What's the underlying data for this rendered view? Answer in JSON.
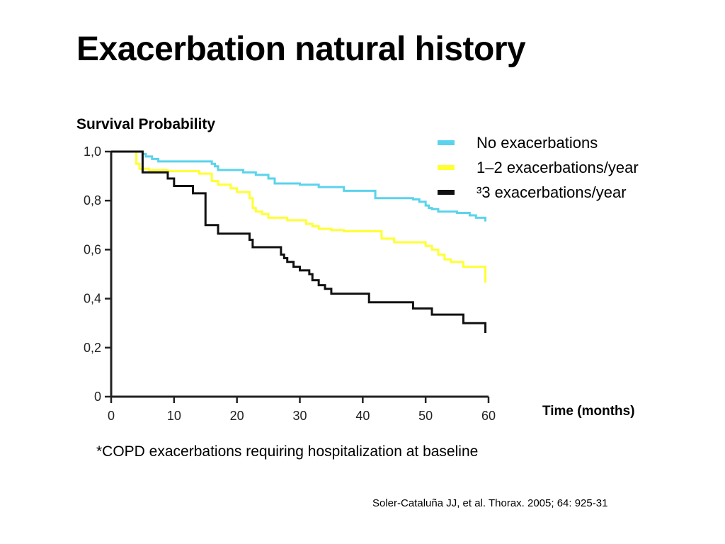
{
  "slide": {
    "title": "Exacerbation natural history",
    "footnote": "*COPD exacerbations requiring hospitalization at baseline",
    "citation": "Soler-Cataluña JJ, et al. Thorax. 2005; 64: 925-31"
  },
  "chart_data": {
    "type": "line",
    "step": true,
    "ylabel": "Survival Probability",
    "xlabel": "Time (months)",
    "xlim": [
      0,
      60
    ],
    "ylim": [
      0,
      1
    ],
    "xticks": [
      0,
      10,
      20,
      30,
      40,
      50,
      60
    ],
    "xtick_labels": [
      "0",
      "10",
      "20",
      "30",
      "40",
      "50",
      "60"
    ],
    "yticks": [
      0,
      0.2,
      0.4,
      0.6,
      0.8,
      1.0
    ],
    "ytick_labels": [
      "0",
      "0,2",
      "0,4",
      "0,6",
      "0,8",
      "1,0"
    ],
    "grid": false,
    "legend": "top-right",
    "series": [
      {
        "name": "No exacerbations",
        "color": "#5bd3ec",
        "x": [
          0,
          5,
          5.5,
          6.5,
          7.5,
          16,
          16.5,
          17,
          21,
          23,
          25,
          26,
          30,
          33,
          37,
          42,
          48,
          49,
          50,
          50.5,
          51,
          52,
          55,
          57,
          58,
          59.5,
          59.5
        ],
        "y": [
          1.0,
          0.99,
          0.98,
          0.97,
          0.96,
          0.95,
          0.94,
          0.925,
          0.915,
          0.905,
          0.89,
          0.87,
          0.865,
          0.855,
          0.84,
          0.81,
          0.805,
          0.795,
          0.78,
          0.77,
          0.765,
          0.755,
          0.75,
          0.74,
          0.73,
          0.715,
          0.715
        ]
      },
      {
        "name": "1–2 exacerbations/year",
        "color": "#ffff33",
        "x": [
          0,
          4,
          4.5,
          6,
          9,
          14,
          16,
          17,
          19,
          20,
          22,
          22.5,
          23,
          24,
          25,
          28,
          31,
          32,
          33,
          35,
          37,
          43,
          45,
          50,
          51,
          52,
          53,
          54,
          56,
          59.5,
          59.5
        ],
        "y": [
          1.0,
          0.95,
          0.93,
          0.925,
          0.92,
          0.91,
          0.88,
          0.865,
          0.85,
          0.835,
          0.81,
          0.77,
          0.755,
          0.745,
          0.73,
          0.72,
          0.705,
          0.695,
          0.685,
          0.68,
          0.675,
          0.645,
          0.63,
          0.615,
          0.6,
          0.58,
          0.56,
          0.55,
          0.53,
          0.465,
          0.465
        ]
      },
      {
        "name": "³3 exacerbations/year",
        "color": "#111111",
        "x": [
          0,
          5,
          9,
          10,
          11,
          13,
          15,
          17,
          22,
          22.5,
          23,
          27,
          27.5,
          28,
          29,
          30,
          31.5,
          32,
          33,
          34,
          35,
          41,
          48,
          51,
          56,
          59.5,
          59.5
        ],
        "y": [
          1.0,
          0.915,
          0.89,
          0.86,
          0.86,
          0.83,
          0.7,
          0.665,
          0.64,
          0.61,
          0.61,
          0.58,
          0.565,
          0.55,
          0.53,
          0.515,
          0.5,
          0.475,
          0.455,
          0.44,
          0.42,
          0.385,
          0.36,
          0.335,
          0.3,
          0.26,
          0.26
        ]
      }
    ]
  }
}
